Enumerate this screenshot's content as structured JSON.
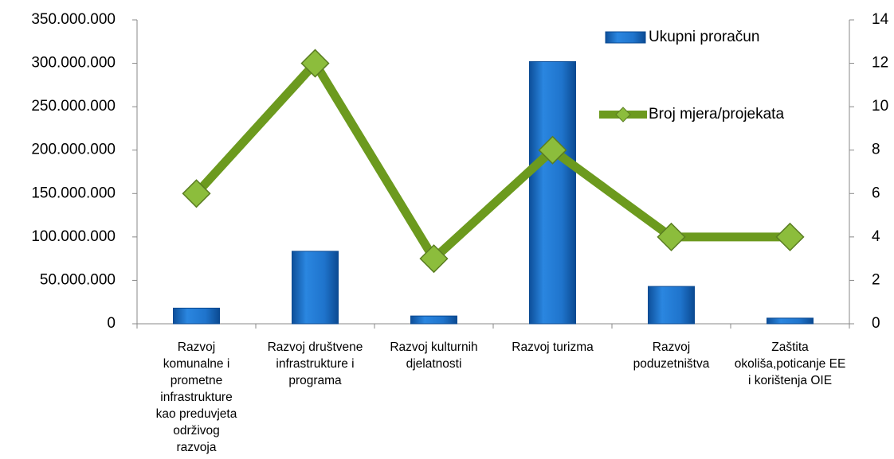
{
  "chart_data": {
    "type": "bar-line",
    "categories": [
      "Razvoj komunalne i prometne infrastrukture kao preduvjeta održivog razvoja",
      "Razvoj društvene infrastrukture i programa",
      "Razvoj kulturnih djelatnosti",
      "Razvoj turizma",
      "Razvoj poduzetništva",
      "Zaštita okoliša,poticanje EE i korištenja OIE"
    ],
    "series": [
      {
        "name": "Ukupni proračun",
        "type": "bar",
        "color": "#1f6fc5",
        "values": [
          18000000,
          83500000,
          9000000,
          302000000,
          43000000,
          6500000
        ]
      },
      {
        "name": "Broj mjera/projekata",
        "type": "line",
        "axis": "y2",
        "color": "#6c9a1e",
        "values": [
          6,
          12,
          3,
          8,
          4,
          4
        ]
      }
    ],
    "ylim": [
      0,
      350000000
    ],
    "yticks": [
      0,
      {
        "value": 50000000,
        "label": "50.000.000"
      },
      {
        "value": 100000000,
        "label": "100.000.000"
      },
      {
        "value": 150000000,
        "label": "150.000.000"
      },
      {
        "value": 200000000,
        "label": "200.000.000"
      },
      {
        "value": 250000000,
        "label": "250.000.000"
      },
      {
        "value": 300000000,
        "label": "300.000.000"
      },
      {
        "value": 350000000,
        "label": "350.000.000"
      }
    ],
    "y2lim": [
      0,
      14
    ],
    "y2ticks": [
      0,
      2,
      4,
      6,
      8,
      10,
      12,
      14
    ],
    "legend": "top-right"
  }
}
